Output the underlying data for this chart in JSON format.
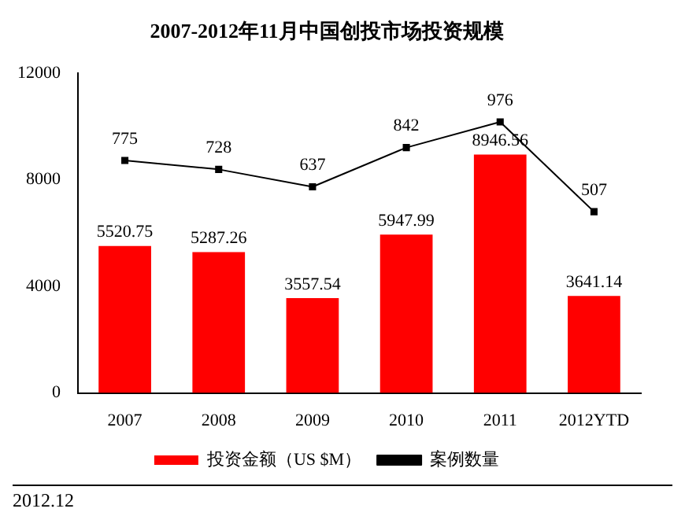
{
  "chart_data": {
    "type": "bar",
    "title": "2007-2012年11月中国创投市场投资规模",
    "categories": [
      "2007",
      "2008",
      "2009",
      "2010",
      "2011",
      "2012YTD"
    ],
    "series": [
      {
        "name": "投资金额（US $M）",
        "color": "#ff0000",
        "values": [
          5520.75,
          5287.26,
          3557.54,
          5947.99,
          8946.56,
          3641.14
        ]
      },
      {
        "name": "案例数量",
        "type": "line",
        "axis": "y2",
        "color": "#000000",
        "marker": "square",
        "values": [
          775,
          728,
          637,
          842,
          976,
          507
        ]
      }
    ],
    "ylim": [
      0,
      12000
    ],
    "yticks": [
      0,
      4000,
      8000,
      12000
    ],
    "y2lim": [
      -440,
      1230
    ],
    "data_labels": true,
    "legend": "bottom",
    "grid": false,
    "annotations": [
      "2012.12"
    ]
  }
}
